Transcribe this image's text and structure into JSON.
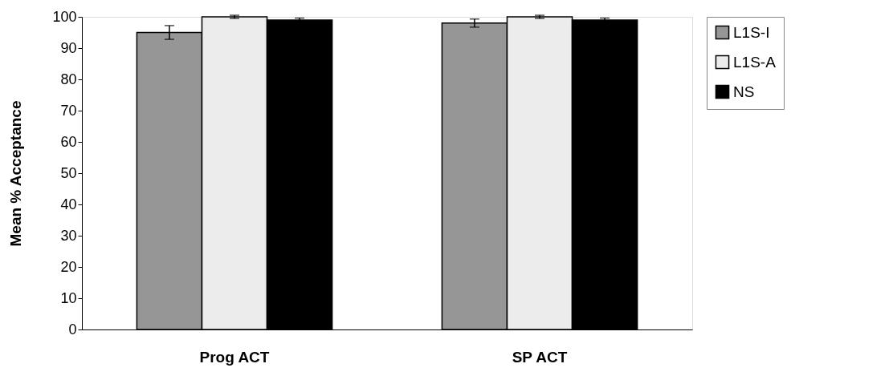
{
  "chart_data": {
    "type": "bar",
    "ylabel": "Mean % Acceptance",
    "categories": [
      "Prog ACT",
      "SP ACT"
    ],
    "series": [
      {
        "name": "L1S-I",
        "color": "#969696",
        "values": [
          95,
          98
        ],
        "errors": [
          2.2,
          1.3
        ]
      },
      {
        "name": "L1S-A",
        "color": "#ececec",
        "values": [
          100,
          100
        ],
        "errors": [
          0.5,
          0.5
        ]
      },
      {
        "name": "NS",
        "color": "#000000",
        "values": [
          99,
          99
        ],
        "errors": [
          0.6,
          0.6
        ]
      }
    ],
    "ylim": [
      0,
      100
    ],
    "yticks": [
      0,
      10,
      20,
      30,
      40,
      50,
      60,
      70,
      80,
      90,
      100
    ],
    "grid": false,
    "legend": "right"
  }
}
